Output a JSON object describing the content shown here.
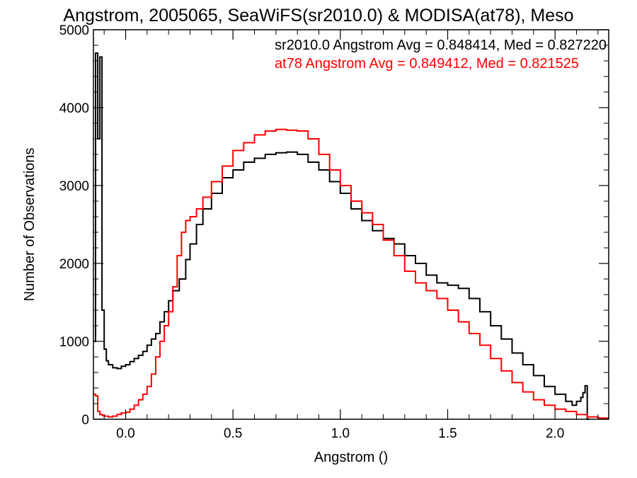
{
  "chart_data": {
    "type": "line",
    "title": "Angstrom, 2005065, SeaWiFS(sr2010.0) & MODISA(at78), Meso",
    "xlabel": "Angstrom ()",
    "ylabel": "Number of Observations",
    "xlim": [
      -0.15,
      2.25
    ],
    "ylim": [
      0,
      5000
    ],
    "xticks": [
      0.0,
      0.5,
      1.0,
      1.5,
      2.0
    ],
    "xtick_labels": [
      "0.0",
      "0.5",
      "1.0",
      "1.5",
      "2.0"
    ],
    "yticks": [
      0,
      1000,
      2000,
      3000,
      4000,
      5000
    ],
    "ytick_labels": [
      "0",
      "1000",
      "2000",
      "3000",
      "4000",
      "5000"
    ],
    "grid": false,
    "legend_position": "top-right",
    "series": [
      {
        "name": "sr2010.0",
        "legend": "sr2010.0 Angstrom Avg = 0.848414, Med = 0.827220",
        "color": "#000000",
        "x": [
          -0.15,
          -0.14,
          -0.13,
          -0.12,
          -0.11,
          -0.1,
          -0.09,
          -0.08,
          -0.06,
          -0.04,
          -0.02,
          0.0,
          0.02,
          0.04,
          0.06,
          0.08,
          0.1,
          0.12,
          0.14,
          0.16,
          0.18,
          0.2,
          0.22,
          0.25,
          0.28,
          0.3,
          0.33,
          0.36,
          0.4,
          0.45,
          0.5,
          0.55,
          0.6,
          0.65,
          0.7,
          0.75,
          0.8,
          0.85,
          0.9,
          0.95,
          1.0,
          1.05,
          1.1,
          1.15,
          1.2,
          1.25,
          1.3,
          1.35,
          1.4,
          1.45,
          1.5,
          1.55,
          1.6,
          1.65,
          1.7,
          1.75,
          1.8,
          1.85,
          1.9,
          1.95,
          2.0,
          2.05,
          2.08,
          2.1,
          2.12,
          2.13,
          2.14,
          2.15
        ],
        "y": [
          1000,
          4700,
          3600,
          4650,
          1400,
          900,
          750,
          700,
          660,
          650,
          680,
          700,
          740,
          780,
          820,
          870,
          950,
          1030,
          1100,
          1250,
          1380,
          1520,
          1650,
          1800,
          2050,
          2250,
          2500,
          2700,
          2900,
          3100,
          3200,
          3300,
          3350,
          3400,
          3420,
          3430,
          3400,
          3300,
          3200,
          3050,
          2900,
          2700,
          2550,
          2420,
          2320,
          2250,
          2100,
          2000,
          1850,
          1750,
          1720,
          1680,
          1550,
          1380,
          1200,
          1030,
          850,
          700,
          560,
          420,
          320,
          230,
          180,
          230,
          280,
          340,
          430,
          0
        ]
      },
      {
        "name": "at78",
        "legend": "at78 Angstrom Avg = 0.849412, Med = 0.821525",
        "color": "#ff0000",
        "x": [
          -0.15,
          -0.14,
          -0.13,
          -0.12,
          -0.11,
          -0.1,
          -0.08,
          -0.06,
          -0.04,
          -0.02,
          0.0,
          0.02,
          0.04,
          0.06,
          0.08,
          0.1,
          0.12,
          0.14,
          0.16,
          0.18,
          0.2,
          0.22,
          0.24,
          0.26,
          0.28,
          0.3,
          0.33,
          0.36,
          0.4,
          0.45,
          0.5,
          0.55,
          0.6,
          0.65,
          0.7,
          0.75,
          0.8,
          0.85,
          0.9,
          0.95,
          1.0,
          1.05,
          1.1,
          1.15,
          1.2,
          1.25,
          1.3,
          1.35,
          1.4,
          1.45,
          1.5,
          1.55,
          1.6,
          1.65,
          1.7,
          1.75,
          1.8,
          1.85,
          1.9,
          1.95,
          2.0,
          2.05,
          2.1,
          2.15,
          2.2,
          2.25
        ],
        "y": [
          320,
          300,
          100,
          60,
          50,
          40,
          30,
          40,
          60,
          80,
          90,
          130,
          180,
          250,
          320,
          420,
          580,
          800,
          1000,
          1200,
          1380,
          1700,
          2100,
          2400,
          2550,
          2600,
          2700,
          2850,
          3050,
          3250,
          3450,
          3550,
          3650,
          3700,
          3720,
          3710,
          3700,
          3600,
          3400,
          3200,
          3000,
          2800,
          2650,
          2500,
          2300,
          2100,
          1900,
          1750,
          1650,
          1550,
          1400,
          1250,
          1100,
          950,
          780,
          620,
          470,
          350,
          250,
          180,
          130,
          100,
          60,
          30,
          15,
          10
        ]
      }
    ]
  }
}
